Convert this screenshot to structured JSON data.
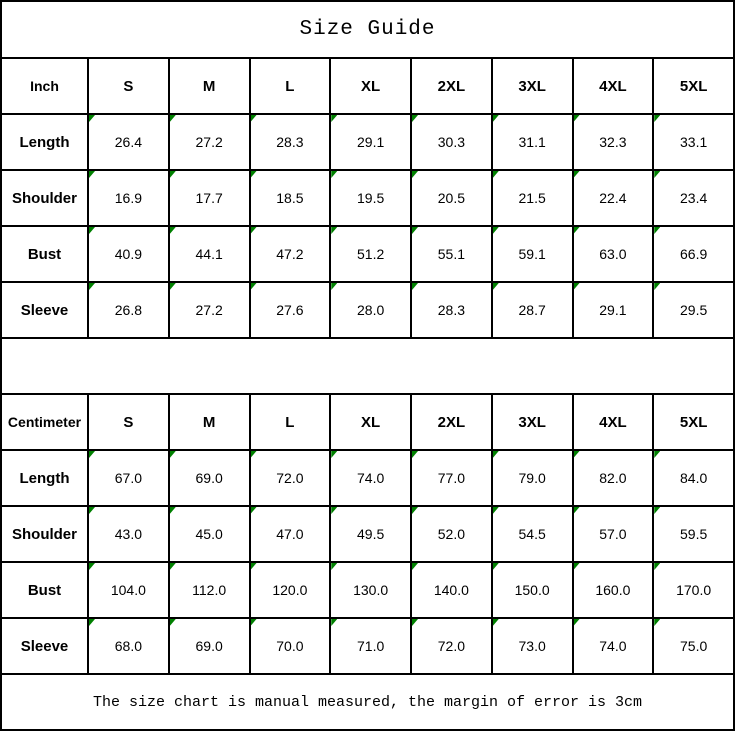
{
  "title": "Size Guide",
  "footer_note": "The size chart is manual measured, the margin of error is 3cm",
  "colors": {
    "border": "#000000",
    "background": "#ffffff",
    "cell_marker": "#008000"
  },
  "sizes": [
    "S",
    "M",
    "L",
    "XL",
    "2XL",
    "3XL",
    "4XL",
    "5XL"
  ],
  "tables": [
    {
      "unit_label": "Inch",
      "rows": [
        {
          "label": "Length",
          "values": [
            "26.4",
            "27.2",
            "28.3",
            "29.1",
            "30.3",
            "31.1",
            "32.3",
            "33.1"
          ]
        },
        {
          "label": "Shoulder",
          "values": [
            "16.9",
            "17.7",
            "18.5",
            "19.5",
            "20.5",
            "21.5",
            "22.4",
            "23.4"
          ]
        },
        {
          "label": "Bust",
          "values": [
            "40.9",
            "44.1",
            "47.2",
            "51.2",
            "55.1",
            "59.1",
            "63.0",
            "66.9"
          ]
        },
        {
          "label": "Sleeve",
          "values": [
            "26.8",
            "27.2",
            "27.6",
            "28.0",
            "28.3",
            "28.7",
            "29.1",
            "29.5"
          ]
        }
      ]
    },
    {
      "unit_label": "Centimeter",
      "rows": [
        {
          "label": "Length",
          "values": [
            "67.0",
            "69.0",
            "72.0",
            "74.0",
            "77.0",
            "79.0",
            "82.0",
            "84.0"
          ]
        },
        {
          "label": "Shoulder",
          "values": [
            "43.0",
            "45.0",
            "47.0",
            "49.5",
            "52.0",
            "54.5",
            "57.0",
            "59.5"
          ]
        },
        {
          "label": "Bust",
          "values": [
            "104.0",
            "112.0",
            "120.0",
            "130.0",
            "140.0",
            "150.0",
            "160.0",
            "170.0"
          ]
        },
        {
          "label": "Sleeve",
          "values": [
            "68.0",
            "69.0",
            "70.0",
            "71.0",
            "72.0",
            "73.0",
            "74.0",
            "75.0"
          ]
        }
      ]
    }
  ],
  "chart_data": [
    {
      "type": "table",
      "title": "Size Guide (Inch)",
      "columns": [
        "Inch",
        "S",
        "M",
        "L",
        "XL",
        "2XL",
        "3XL",
        "4XL",
        "5XL"
      ],
      "rows": [
        [
          "Length",
          26.4,
          27.2,
          28.3,
          29.1,
          30.3,
          31.1,
          32.3,
          33.1
        ],
        [
          "Shoulder",
          16.9,
          17.7,
          18.5,
          19.5,
          20.5,
          21.5,
          22.4,
          23.4
        ],
        [
          "Bust",
          40.9,
          44.1,
          47.2,
          51.2,
          55.1,
          59.1,
          63.0,
          66.9
        ],
        [
          "Sleeve",
          26.8,
          27.2,
          27.6,
          28.0,
          28.3,
          28.7,
          29.1,
          29.5
        ]
      ]
    },
    {
      "type": "table",
      "title": "Size Guide (Centimeter)",
      "columns": [
        "Centimeter",
        "S",
        "M",
        "L",
        "XL",
        "2XL",
        "3XL",
        "4XL",
        "5XL"
      ],
      "rows": [
        [
          "Length",
          67.0,
          69.0,
          72.0,
          74.0,
          77.0,
          79.0,
          82.0,
          84.0
        ],
        [
          "Shoulder",
          43.0,
          45.0,
          47.0,
          49.5,
          52.0,
          54.5,
          57.0,
          59.5
        ],
        [
          "Bust",
          104.0,
          112.0,
          120.0,
          130.0,
          140.0,
          150.0,
          160.0,
          170.0
        ],
        [
          "Sleeve",
          68.0,
          69.0,
          70.0,
          71.0,
          72.0,
          73.0,
          74.0,
          75.0
        ]
      ],
      "note": "The size chart is manual measured, the margin of error is 3cm"
    }
  ]
}
